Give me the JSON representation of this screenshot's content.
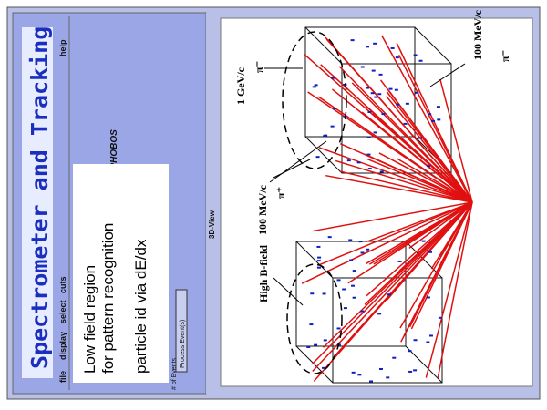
{
  "title": "Spectrometer and Tracking",
  "menu": [
    "file",
    "display",
    "select",
    "cuts",
    "help"
  ],
  "window_title": "f Event display for PHOBOS",
  "notes": [
    "Low field region",
    "for pattern recognition",
    "particle id via dE/dx"
  ],
  "controls": {
    "events_label": "# of Events",
    "button": "Process Event(s)"
  },
  "view_label": "3D-View",
  "annotations": [
    {
      "momentum": "1 GeV/c",
      "particle": "π⁻"
    },
    {
      "momentum": "100 MeV/c",
      "particle": "π⁻"
    },
    {
      "momentum": "100 MeV/c",
      "particle": "π⁺"
    }
  ],
  "field_label": "High B-field"
}
